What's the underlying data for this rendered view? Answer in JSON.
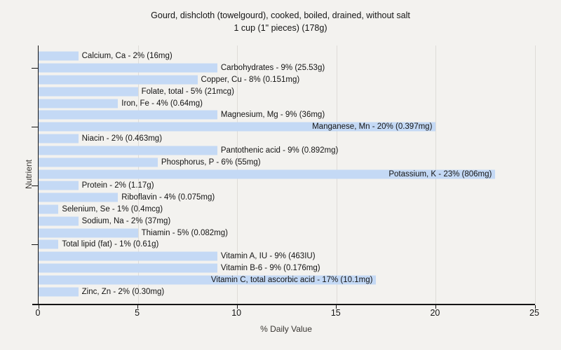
{
  "chart_data": {
    "type": "bar",
    "orientation": "horizontal",
    "title": "Gourd, dishcloth (towelgourd), cooked, boiled, drained, without salt",
    "subtitle": "1 cup (1\" pieces) (178g)",
    "xlabel": "% Daily Value",
    "ylabel": "Nutrient",
    "xlim": [
      0,
      25
    ],
    "xticks": [
      0,
      5,
      10,
      15,
      20,
      25
    ],
    "grid": true,
    "legend": false,
    "ytick_category_indices": [
      1,
      6,
      11,
      16
    ],
    "bar_color": "#c4d9f5",
    "background_color": "#f3f2ef",
    "gridline_color": "#dedcd8",
    "axis_color": "#141414",
    "categories": [
      "Calcium, Ca",
      "Carbohydrates",
      "Copper, Cu",
      "Folate, total",
      "Iron, Fe",
      "Magnesium, Mg",
      "Manganese, Mn",
      "Niacin",
      "Pantothenic acid",
      "Phosphorus, P",
      "Potassium, K",
      "Protein",
      "Riboflavin",
      "Selenium, Se",
      "Sodium, Na",
      "Thiamin",
      "Total lipid (fat)",
      "Vitamin A, IU",
      "Vitamin B-6",
      "Vitamin C, total ascorbic acid",
      "Zinc, Zn"
    ],
    "values": [
      2,
      9,
      8,
      5,
      4,
      9,
      20,
      2,
      9,
      6,
      23,
      2,
      4,
      1,
      2,
      5,
      1,
      9,
      9,
      17,
      2
    ],
    "bars": [
      {
        "label": "Calcium, Ca - 2% (16mg)",
        "nutrient": "Calcium, Ca",
        "percent": 2,
        "amount": "16mg",
        "label_inside": false
      },
      {
        "label": "Carbohydrates - 9% (25.53g)",
        "nutrient": "Carbohydrates",
        "percent": 9,
        "amount": "25.53g",
        "label_inside": false
      },
      {
        "label": "Copper, Cu - 8% (0.151mg)",
        "nutrient": "Copper, Cu",
        "percent": 8,
        "amount": "0.151mg",
        "label_inside": false
      },
      {
        "label": "Folate, total - 5% (21mcg)",
        "nutrient": "Folate, total",
        "percent": 5,
        "amount": "21mcg",
        "label_inside": false
      },
      {
        "label": "Iron, Fe - 4% (0.64mg)",
        "nutrient": "Iron, Fe",
        "percent": 4,
        "amount": "0.64mg",
        "label_inside": false
      },
      {
        "label": "Magnesium, Mg - 9% (36mg)",
        "nutrient": "Magnesium, Mg",
        "percent": 9,
        "amount": "36mg",
        "label_inside": false
      },
      {
        "label": "Manganese, Mn - 20% (0.397mg)",
        "nutrient": "Manganese, Mn",
        "percent": 20,
        "amount": "0.397mg",
        "label_inside": true
      },
      {
        "label": "Niacin - 2% (0.463mg)",
        "nutrient": "Niacin",
        "percent": 2,
        "amount": "0.463mg",
        "label_inside": false
      },
      {
        "label": "Pantothenic acid - 9% (0.892mg)",
        "nutrient": "Pantothenic acid",
        "percent": 9,
        "amount": "0.892mg",
        "label_inside": false
      },
      {
        "label": "Phosphorus, P - 6% (55mg)",
        "nutrient": "Phosphorus, P",
        "percent": 6,
        "amount": "55mg",
        "label_inside": false
      },
      {
        "label": "Potassium, K - 23% (806mg)",
        "nutrient": "Potassium, K",
        "percent": 23,
        "amount": "806mg",
        "label_inside": true
      },
      {
        "label": "Protein - 2% (1.17g)",
        "nutrient": "Protein",
        "percent": 2,
        "amount": "1.17g",
        "label_inside": false
      },
      {
        "label": "Riboflavin - 4% (0.075mg)",
        "nutrient": "Riboflavin",
        "percent": 4,
        "amount": "0.075mg",
        "label_inside": false
      },
      {
        "label": "Selenium, Se - 1% (0.4mcg)",
        "nutrient": "Selenium, Se",
        "percent": 1,
        "amount": "0.4mcg",
        "label_inside": false
      },
      {
        "label": "Sodium, Na - 2% (37mg)",
        "nutrient": "Sodium, Na",
        "percent": 2,
        "amount": "37mg",
        "label_inside": false
      },
      {
        "label": "Thiamin - 5% (0.082mg)",
        "nutrient": "Thiamin",
        "percent": 5,
        "amount": "0.082mg",
        "label_inside": false
      },
      {
        "label": "Total lipid (fat) - 1% (0.61g)",
        "nutrient": "Total lipid (fat)",
        "percent": 1,
        "amount": "0.61g",
        "label_inside": false
      },
      {
        "label": "Vitamin A, IU - 9% (463IU)",
        "nutrient": "Vitamin A, IU",
        "percent": 9,
        "amount": "463IU",
        "label_inside": false
      },
      {
        "label": "Vitamin B-6 - 9% (0.176mg)",
        "nutrient": "Vitamin B-6",
        "percent": 9,
        "amount": "0.176mg",
        "label_inside": false
      },
      {
        "label": "Vitamin C, total ascorbic acid - 17% (10.1mg)",
        "nutrient": "Vitamin C, total ascorbic acid",
        "percent": 17,
        "amount": "10.1mg",
        "label_inside": true
      },
      {
        "label": "Zinc, Zn - 2% (0.30mg)",
        "nutrient": "Zinc, Zn",
        "percent": 2,
        "amount": "0.30mg",
        "label_inside": false
      }
    ]
  }
}
